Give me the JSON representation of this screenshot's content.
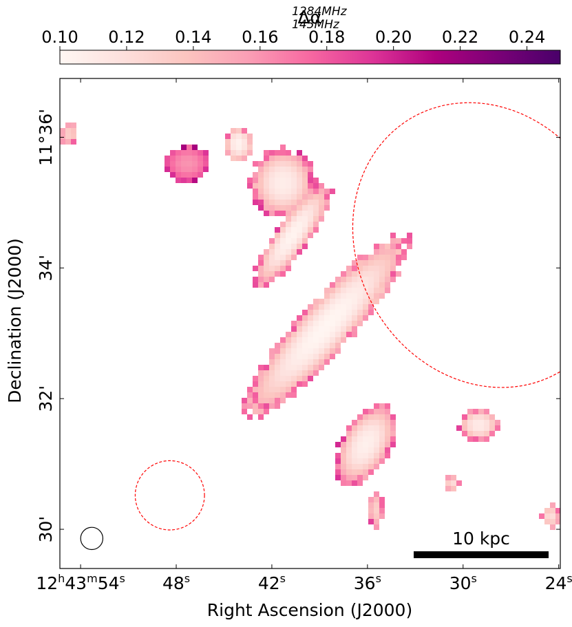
{
  "chart_data": {
    "type": "heatmap",
    "title": "",
    "colorbar": {
      "label_main": "Δα",
      "label_sup": "1284MHz",
      "label_sub": "145MHz",
      "range": [
        0.1,
        0.25
      ],
      "ticks": [
        "0.10",
        "0.12",
        "0.14",
        "0.16",
        "0.18",
        "0.20",
        "0.22",
        "0.24"
      ],
      "tick_values": [
        0.1,
        0.12,
        0.14,
        0.16,
        0.18,
        0.2,
        0.22,
        0.24
      ],
      "colormap": "RdPu",
      "stops": [
        "#fff7f3",
        "#fde0dd",
        "#fcc5c0",
        "#fa9fb5",
        "#f768a1",
        "#dd3497",
        "#ae017e",
        "#7a0177",
        "#49006a"
      ]
    },
    "xlabel": "Right Ascension (J2000)",
    "ylabel": "Declination (J2000)",
    "x_ticks": [
      {
        "label": "12h43m54s",
        "h": "12",
        "hsup": "h",
        "m": "43",
        "msup": "m",
        "s": "54",
        "ssup": "s",
        "ra_sec": 234
      },
      {
        "label": "48s",
        "s": "48",
        "ssup": "s",
        "ra_sec": 228
      },
      {
        "label": "42s",
        "s": "42",
        "ssup": "s",
        "ra_sec": 222
      },
      {
        "label": "36s",
        "s": "36",
        "ssup": "s",
        "ra_sec": 216
      },
      {
        "label": "30s",
        "s": "30",
        "ssup": "s",
        "ra_sec": 210
      },
      {
        "label": "24s",
        "s": "24",
        "ssup": "s",
        "ra_sec": 204
      }
    ],
    "y_ticks": [
      {
        "label": "11°36'",
        "dec_arcmin": 36
      },
      {
        "label": "34'",
        "dec_arcmin": 34
      },
      {
        "label": "32'",
        "dec_arcmin": 32
      },
      {
        "label": "30'",
        "dec_arcmin": 30
      }
    ],
    "xlim_ra_sec": [
      235.3,
      203.9
    ],
    "ylim_dec_arcmin": [
      29.4,
      36.9
    ],
    "scale_bar_label": "10 kpc",
    "scale_bar_length_kpc": 10,
    "regions": [
      {
        "name": "large-ellipse-region",
        "shape": "ellipse",
        "color": "#ff0000",
        "style": "dashed",
        "ra_center_sec": 208.6,
        "dec_center_arcmin": 34.35,
        "ra_semi_sec": 8.0,
        "dec_semi_arcmin": 2.25,
        "rotation_deg": -30
      },
      {
        "name": "small-circle-region",
        "shape": "circle",
        "color": "#ff0000",
        "style": "dashed",
        "ra_center_sec": 228.4,
        "dec_center_arcmin": 30.52,
        "radius_dec_arcmin": 0.53
      }
    ],
    "beam": {
      "shape": "circle",
      "ra_center_sec": 233.3,
      "dec_center_arcmin": 29.86,
      "radius_dec_arcmin": 0.17
    },
    "emission_regions": [
      {
        "name": "main-tail",
        "ra_sec": 218.6,
        "dec_arcmin": 33.1,
        "ra_half_sec": 1.7,
        "dec_half_arcmin": 1.9,
        "rotation_deg": 42,
        "core_value": 0.101,
        "edge_value": 0.172
      },
      {
        "name": "upper-tail",
        "ra_sec": 220.7,
        "dec_arcmin": 34.5,
        "ra_half_sec": 1.1,
        "dec_half_arcmin": 1.0,
        "rotation_deg": 35,
        "core_value": 0.103,
        "edge_value": 0.175
      },
      {
        "name": "head-blob",
        "ra_sec": 221.3,
        "dec_arcmin": 35.3,
        "ra_half_sec": 2.1,
        "dec_half_arcmin": 0.55,
        "rotation_deg": 0,
        "core_value": 0.108,
        "edge_value": 0.18
      },
      {
        "name": "lower-tail",
        "ra_sec": 216.1,
        "dec_arcmin": 31.3,
        "ra_half_sec": 1.6,
        "dec_half_arcmin": 0.7,
        "rotation_deg": 30,
        "core_value": 0.106,
        "edge_value": 0.178
      },
      {
        "name": "top-knot",
        "ra_sec": 224.1,
        "dec_arcmin": 35.9,
        "ra_half_sec": 0.9,
        "dec_half_arcmin": 0.28,
        "rotation_deg": 0,
        "core_value": 0.104,
        "edge_value": 0.165
      },
      {
        "name": "left-clump",
        "ra_sec": 227.3,
        "dec_arcmin": 35.6,
        "ra_half_sec": 1.5,
        "dec_half_arcmin": 0.3,
        "rotation_deg": 0,
        "core_value": 0.16,
        "edge_value": 0.195
      },
      {
        "name": "east-knot",
        "ra_sec": 209.0,
        "dec_arcmin": 31.6,
        "ra_half_sec": 1.3,
        "dec_half_arcmin": 0.25,
        "rotation_deg": 0,
        "core_value": 0.11,
        "edge_value": 0.17
      },
      {
        "name": "corner-left-knot",
        "ra_sec": 234.7,
        "dec_arcmin": 36.05,
        "ra_half_sec": 0.6,
        "dec_half_arcmin": 0.17,
        "rotation_deg": 0,
        "core_value": 0.13,
        "edge_value": 0.17
      },
      {
        "name": "corner-right-knot",
        "ra_sec": 204.5,
        "dec_arcmin": 30.2,
        "ra_half_sec": 0.6,
        "dec_half_arcmin": 0.18,
        "rotation_deg": 0,
        "core_value": 0.12,
        "edge_value": 0.17
      },
      {
        "name": "bottom-knot",
        "ra_sec": 215.5,
        "dec_arcmin": 30.3,
        "ra_half_sec": 0.5,
        "dec_half_arcmin": 0.3,
        "rotation_deg": 0,
        "core_value": 0.13,
        "edge_value": 0.18
      },
      {
        "name": "small-knot",
        "ra_sec": 210.7,
        "dec_arcmin": 30.7,
        "ra_half_sec": 0.5,
        "dec_half_arcmin": 0.14,
        "rotation_deg": 0,
        "core_value": 0.12,
        "edge_value": 0.18
      }
    ]
  }
}
